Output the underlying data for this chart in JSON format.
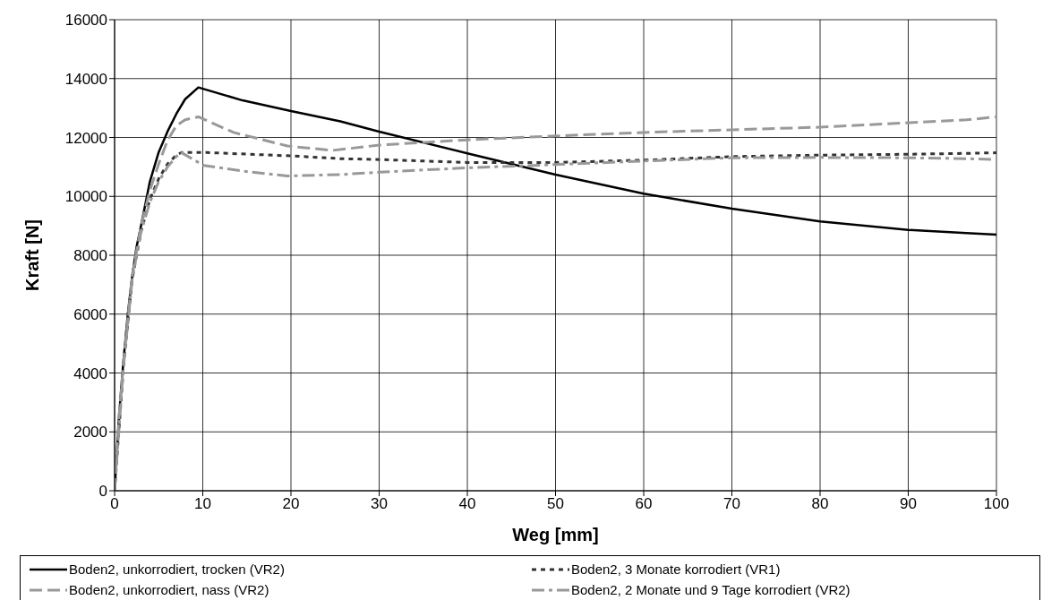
{
  "chart_data": {
    "type": "line",
    "xlabel": "Weg [mm]",
    "ylabel": "Kraft [N]",
    "xlim": [
      0,
      100
    ],
    "xticks": [
      0,
      10,
      20,
      30,
      40,
      50,
      60,
      70,
      80,
      90,
      100
    ],
    "ylim": [
      0,
      16000
    ],
    "yticks": [
      0,
      2000,
      4000,
      6000,
      8000,
      10000,
      12000,
      14000,
      16000
    ],
    "grid": true,
    "legend": "bottom",
    "marker": "none",
    "series": [
      {
        "name": "Boden2, unkorrodiert, trocken (VR2)",
        "color": "#000000",
        "line_style": "solid",
        "x": [
          0,
          0.5,
          1,
          1.5,
          2,
          2.5,
          3,
          4,
          5,
          6,
          7,
          8,
          9.5,
          14.5,
          20,
          25.6,
          30,
          40,
          50,
          60,
          70,
          80,
          90,
          96.6,
          100
        ],
        "values": [
          0,
          2500,
          4400,
          6000,
          7300,
          8300,
          9000,
          10500,
          11500,
          12200,
          12800,
          13300,
          13700,
          13260,
          12900,
          12550,
          12200,
          11460,
          10740,
          10090,
          9580,
          9150,
          8860,
          8750,
          8700
        ]
      },
      {
        "name": "Boden2, 3 Monate korrodiert (VR1)",
        "color": "#333333",
        "line_style": "dotted",
        "x": [
          0,
          1,
          2,
          3,
          4,
          5,
          6,
          7,
          7.6,
          10.4,
          20.3,
          25.6,
          30,
          40,
          50,
          60,
          70,
          80,
          90,
          96.6,
          100
        ],
        "values": [
          0,
          4200,
          7200,
          8800,
          9900,
          10600,
          11100,
          11400,
          11490,
          11490,
          11370,
          11280,
          11250,
          11150,
          11150,
          11230,
          11350,
          11400,
          11430,
          11460,
          11480
        ]
      },
      {
        "name": "Boden2, unkorrodiert, nass (VR2)",
        "color": "#999999",
        "line_style": "dashed",
        "x": [
          0,
          0.5,
          1,
          1.5,
          2,
          3,
          4,
          5,
          6,
          7,
          8,
          9.5,
          13.5,
          19.6,
          24.7,
          30,
          40,
          50,
          60,
          70,
          80,
          90,
          96.6,
          100
        ],
        "values": [
          0,
          2500,
          4300,
          5800,
          7300,
          9000,
          10200,
          11100,
          11900,
          12400,
          12600,
          12700,
          12170,
          11710,
          11560,
          11740,
          11920,
          12050,
          12170,
          12260,
          12350,
          12500,
          12600,
          12700
        ]
      },
      {
        "name": "Boden2, 2 Monate und 9 Tage korrodiert (VR2)",
        "color": "#999999",
        "line_style": "dashdot",
        "x": [
          0,
          1,
          2,
          3,
          4,
          5,
          6,
          7,
          7.5,
          10.1,
          14.5,
          19.6,
          25.6,
          30,
          40,
          50,
          60,
          70,
          80,
          90,
          96.6,
          100
        ],
        "values": [
          0,
          4200,
          7200,
          8800,
          9800,
          10500,
          11000,
          11350,
          11500,
          11050,
          10860,
          10690,
          10740,
          10820,
          10970,
          11080,
          11200,
          11310,
          11320,
          11310,
          11280,
          11250
        ]
      }
    ]
  }
}
